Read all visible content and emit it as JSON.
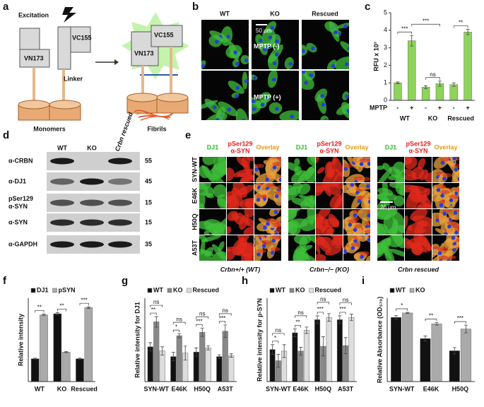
{
  "panel_letters": [
    "a",
    "b",
    "c",
    "d",
    "e",
    "f",
    "g",
    "h",
    "i"
  ],
  "panel_a": {
    "excitation": "Excitation",
    "monomer_labels": [
      "VC155",
      "VN173"
    ],
    "linker": "Linker",
    "fibril_labels": [
      "VC155",
      "VN173"
    ],
    "monomers": "Monomers",
    "fibrils": "Fibrils"
  },
  "panel_b": {
    "columns": [
      "WT",
      "KO",
      "Rescued"
    ],
    "rows": [
      "MPTP (-)",
      "MPTP (+)"
    ],
    "scale_bar": "50 μm"
  },
  "panel_d": {
    "columns": [
      "WT",
      "KO",
      "Crbn rescued"
    ],
    "rows": [
      [
        "α-CRBN"
      ],
      [
        "α-DJ1"
      ],
      [
        "pSer129",
        "α-SYN"
      ],
      [
        "α-SYN"
      ],
      [
        "α-GAPDH"
      ]
    ],
    "sizes": [
      "55",
      "45",
      "15",
      "15",
      "35"
    ]
  },
  "panel_e": {
    "channels": [
      [
        "DJ1"
      ],
      [
        "pSer129",
        "α-SYN"
      ],
      [
        "Overlay"
      ]
    ],
    "rows": [
      "SYN-WT",
      "E46K",
      "H50Q",
      "A53T"
    ],
    "scale_bar": "20 μm",
    "genotypes": [
      "Crbn+/+ (WT)",
      "Crbn−/− (KO)",
      "Crbn rescued"
    ]
  },
  "chart_data": [
    {
      "type": "bar",
      "ylabel": "RFU x 10³",
      "x_label": "MPTP",
      "categories": [
        "-",
        "+",
        "-",
        "+",
        "-",
        "+"
      ],
      "groups": [
        "WT",
        "KO",
        "Rescued"
      ],
      "values": [
        1.0,
        3.4,
        0.75,
        0.95,
        0.9,
        3.9
      ],
      "errors": [
        0.05,
        0.3,
        0.08,
        0.15,
        0.1,
        0.15
      ],
      "color": "#8ed35a",
      "ylim": [
        0,
        5
      ],
      "yticks": [
        0,
        1,
        2,
        3,
        4,
        5
      ],
      "annotations": [
        "***",
        "***",
        "ns",
        "**"
      ]
    },
    {
      "type": "bar",
      "ylabel": "Relative intensity",
      "categories": [
        "WT",
        "KO",
        "Rescued"
      ],
      "legend": "top",
      "series": [
        {
          "name": "DJ1",
          "color": "#111111",
          "values": [
            4.1,
            12.2,
            4.1
          ],
          "errors": [
            0.1,
            0.2,
            0.1
          ]
        },
        {
          "name": "pSYN",
          "color": "#aaaaaa",
          "values": [
            12.0,
            5.3,
            13.3
          ],
          "errors": [
            0.15,
            0.1,
            0.15
          ]
        }
      ],
      "ylim": [
        0,
        15
      ],
      "annotations": [
        "**",
        "**",
        "***"
      ]
    },
    {
      "type": "bar",
      "ylabel": "Relative intensity for DJ1",
      "categories": [
        "SYN-WT",
        "E46K",
        "H50Q",
        "A53T"
      ],
      "legend": "top",
      "series": [
        {
          "name": "WT",
          "color": "#111111",
          "values": [
            1.0,
            0.72,
            0.85,
            0.72
          ],
          "errors": [
            0.12,
            0.12,
            0.12,
            0.05
          ]
        },
        {
          "name": "KO",
          "color": "#888888",
          "values": [
            1.72,
            1.32,
            1.42,
            1.45
          ],
          "errors": [
            0.15,
            0.06,
            0.12,
            0.18
          ]
        },
        {
          "name": "Rescued",
          "color": "#dddddd",
          "values": [
            0.88,
            0.82,
            0.97,
            0.75
          ],
          "errors": [
            0.12,
            0.2,
            0.06,
            0.05
          ]
        }
      ],
      "ylim": [
        0,
        2.4
      ],
      "annotations": [
        "ns",
        "**",
        "ns",
        "*",
        "ns",
        "***",
        "ns",
        "***"
      ]
    },
    {
      "type": "bar",
      "ylabel": "Relative intensity for p-SYN",
      "categories": [
        "SYN-WT",
        "E46K",
        "H50Q",
        "A53T"
      ],
      "legend": "top",
      "series": [
        {
          "name": "WT",
          "color": "#111111",
          "values": [
            1.0,
            1.52,
            1.93,
            1.93
          ],
          "errors": [
            0.15,
            0.12,
            0.12,
            0.12
          ]
        },
        {
          "name": "KO",
          "color": "#888888",
          "values": [
            0.65,
            0.95,
            1.1,
            1.12
          ],
          "errors": [
            0.2,
            0.12,
            0.3,
            0.25
          ]
        },
        {
          "name": "Rescued",
          "color": "#dddddd",
          "values": [
            0.95,
            1.6,
            2.0,
            2.0
          ],
          "errors": [
            0.2,
            0.1,
            0.12,
            0.1
          ]
        }
      ],
      "ylim": [
        0,
        2.6
      ],
      "annotations": [
        "ns",
        "*",
        "ns",
        "**",
        "ns",
        "***",
        "ns",
        "***"
      ]
    },
    {
      "type": "bar",
      "ylabel": "Relative Absorbance (OD₅₇₀)",
      "categories": [
        "SYN-WT",
        "E46K",
        "H50Q"
      ],
      "legend": "top",
      "series": [
        {
          "name": "WT",
          "color": "#111111",
          "values": [
            1.0,
            0.67,
            0.48
          ],
          "errors": [
            0.03,
            0.04,
            0.05
          ]
        },
        {
          "name": "KO",
          "color": "#aaaaaa",
          "values": [
            1.07,
            0.9,
            0.82
          ],
          "errors": [
            0.01,
            0.02,
            0.06
          ]
        }
      ],
      "ylim": [
        0,
        1.3
      ],
      "annotations": [
        "*",
        "**",
        "***"
      ]
    }
  ]
}
